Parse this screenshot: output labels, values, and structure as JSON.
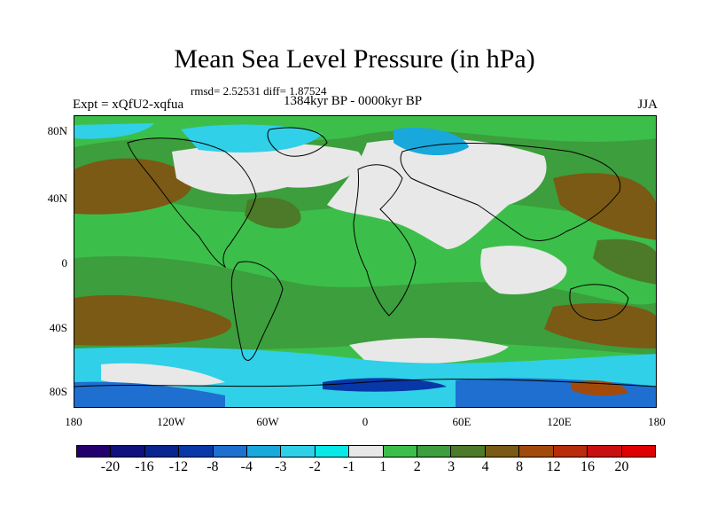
{
  "title": "Mean Sea Level Pressure (in hPa)",
  "stats": "rmsd= 2.52531 diff= 1.87524",
  "period": "1384kyr BP - 0000kyr BP",
  "experiment": "Expt = xQfU2-xqfua",
  "season": "JJA",
  "lat_labels": [
    "80N",
    "40N",
    "0",
    "40S",
    "80S"
  ],
  "lon_labels": [
    "180",
    "120W",
    "60W",
    "0",
    "60E",
    "120E",
    "180"
  ],
  "colorbar": {
    "labels": [
      "-20",
      "-16",
      "-12",
      "-8",
      "-4",
      "-3",
      "-2",
      "-1",
      "1",
      "2",
      "3",
      "4",
      "8",
      "12",
      "16",
      "20"
    ],
    "colors": [
      "#24006e",
      "#10107e",
      "#08248e",
      "#0838a8",
      "#1e6fd0",
      "#18a8dc",
      "#30d0e8",
      "#08e8e8",
      "#e8e8e8",
      "#3cbf4a",
      "#3c9e3c",
      "#4c7a28",
      "#7a5a14",
      "#a24a0c",
      "#b82c0c",
      "#c81010",
      "#e00000"
    ]
  }
}
